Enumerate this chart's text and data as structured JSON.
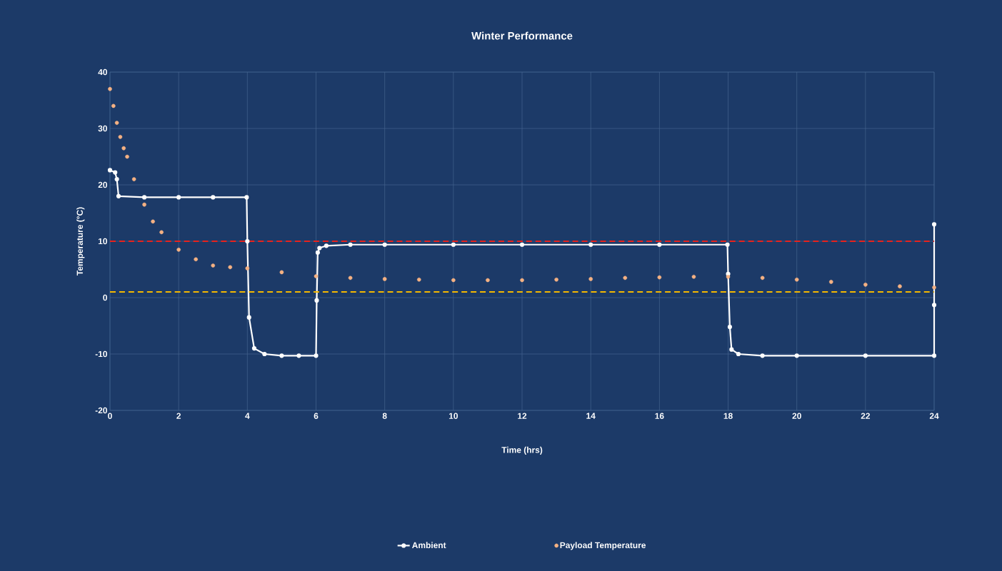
{
  "chart_data": {
    "type": "line",
    "title": "Winter Performance",
    "xlabel": "Time (hrs)",
    "ylabel": "Temperature (°C)",
    "xlim": [
      0,
      24
    ],
    "ylim": [
      -20,
      40
    ],
    "xticks": [
      0,
      2,
      4,
      6,
      8,
      10,
      12,
      14,
      16,
      18,
      20,
      22,
      24
    ],
    "yticks": [
      -20,
      -10,
      0,
      10,
      20,
      30,
      40
    ],
    "grid": true,
    "legend": "bottom",
    "marker": "circle",
    "ref_lines": [
      {
        "axis": "y",
        "value": 10,
        "color": "#e8221c",
        "line_style": "dashed"
      },
      {
        "axis": "y",
        "value": 1,
        "color": "#f5b800",
        "line_style": "dashed"
      }
    ],
    "series": [
      {
        "name": "Ambient",
        "color": "#ffffff",
        "x": [
          0,
          0.15,
          0.2,
          0.25,
          1,
          2,
          3,
          3.98,
          4.0,
          4.05,
          4.2,
          4.5,
          5,
          5.5,
          6,
          6.02,
          6.05,
          6.1,
          6.3,
          7,
          8,
          10,
          12,
          14,
          16,
          17.98,
          18.0,
          18.05,
          18.1,
          18.3,
          19,
          20,
          22,
          24,
          24,
          24
        ],
        "values": [
          22.6,
          22.2,
          21,
          18,
          17.8,
          17.8,
          17.8,
          17.8,
          10,
          -3.5,
          -9,
          -10,
          -10.3,
          -10.3,
          -10.3,
          -0.5,
          8,
          8.8,
          9.2,
          9.4,
          9.4,
          9.4,
          9.4,
          9.4,
          9.4,
          9.4,
          4.2,
          -5.2,
          -9.2,
          -10,
          -10.3,
          -10.3,
          -10.3,
          -10.3,
          -1.3,
          13
        ]
      },
      {
        "name": "Payload Temperature",
        "type": "scatter",
        "color": "#f4b183",
        "x": [
          0,
          0.1,
          0.2,
          0.3,
          0.4,
          0.5,
          0.7,
          1,
          1.25,
          1.5,
          2,
          2.5,
          3,
          3.5,
          4,
          5,
          6,
          7,
          8,
          9,
          10,
          11,
          12,
          13,
          14,
          15,
          16,
          17,
          18,
          19,
          20,
          21,
          22,
          23,
          24
        ],
        "values": [
          37,
          34,
          31,
          28.5,
          26.5,
          25,
          21,
          16.5,
          13.5,
          11.6,
          8.5,
          6.8,
          5.7,
          5.4,
          5.2,
          4.5,
          3.8,
          3.5,
          3.3,
          3.2,
          3.1,
          3.1,
          3.1,
          3.2,
          3.3,
          3.5,
          3.6,
          3.7,
          3.7,
          3.5,
          3.2,
          2.8,
          2.3,
          2.0,
          1.8
        ]
      }
    ]
  }
}
